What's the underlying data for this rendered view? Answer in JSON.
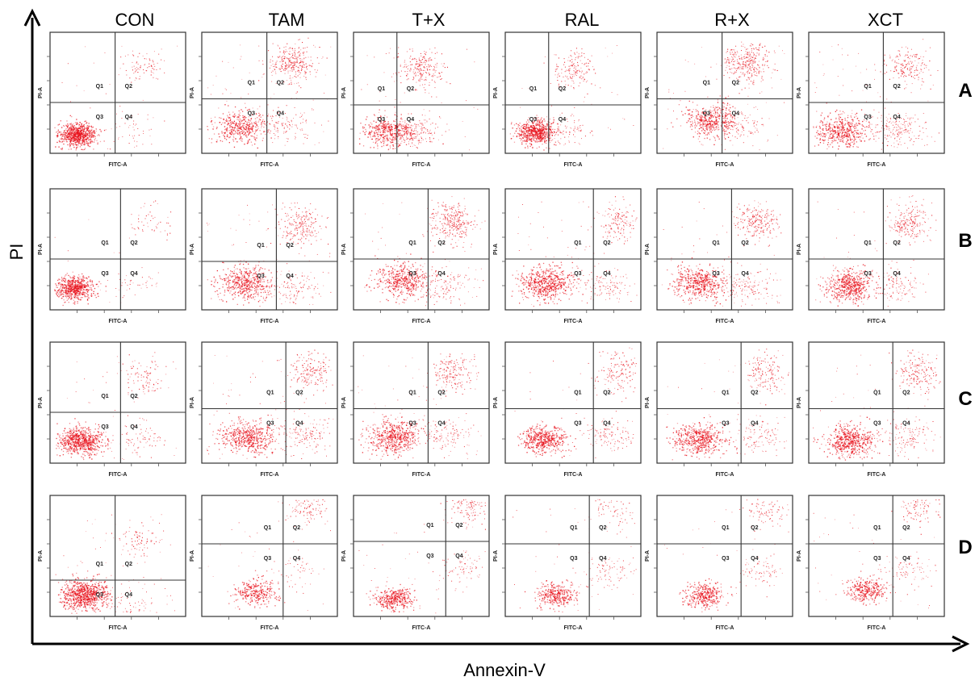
{
  "chart_data": {
    "type": "scatter",
    "description_axis": {
      "xlabel": "Annexin-V",
      "ylabel": "PI"
    },
    "columns": [
      "CON",
      "TAM",
      "T+X",
      "RAL",
      "R+X",
      "XCT"
    ],
    "rows": [
      "A",
      "B",
      "C",
      "D"
    ],
    "panel_xlabel": "FITC-A",
    "panel_ylabel": "PI-A",
    "quadrants": [
      "Q1",
      "Q2",
      "Q3",
      "Q4"
    ],
    "point_color": "#e8101a",
    "panels": [
      [
        {
          "center": [
            0.2,
            0.16
          ],
          "live": 0.82,
          "spread": 0.07,
          "q1": 0.03,
          "q2": 0.1,
          "q4": 0.05,
          "density": 1.0,
          "gate": [
            0.48,
            0.42
          ]
        },
        {
          "center": [
            0.28,
            0.22
          ],
          "live": 0.4,
          "spread": 0.1,
          "q1": 0.12,
          "q2": 0.35,
          "q4": 0.13,
          "density": 1.0,
          "gate": [
            0.48,
            0.45
          ]
        },
        {
          "center": [
            0.25,
            0.18
          ],
          "live": 0.45,
          "spread": 0.09,
          "q1": 0.05,
          "q2": 0.25,
          "q4": 0.25,
          "density": 1.0,
          "gate": [
            0.32,
            0.4
          ]
        },
        {
          "center": [
            0.22,
            0.18
          ],
          "live": 0.7,
          "spread": 0.07,
          "q1": 0.04,
          "q2": 0.16,
          "q4": 0.1,
          "density": 1.0,
          "gate": [
            0.32,
            0.4
          ]
        },
        {
          "center": [
            0.4,
            0.28
          ],
          "live": 0.45,
          "spread": 0.1,
          "q1": 0.08,
          "q2": 0.35,
          "q4": 0.12,
          "density": 1.0,
          "gate": [
            0.48,
            0.45
          ]
        },
        {
          "center": [
            0.25,
            0.18
          ],
          "live": 0.5,
          "spread": 0.1,
          "q1": 0.08,
          "q2": 0.22,
          "q4": 0.2,
          "density": 1.0,
          "gate": [
            0.55,
            0.42
          ]
        }
      ],
      [
        {
          "center": [
            0.18,
            0.18
          ],
          "live": 0.85,
          "spread": 0.07,
          "q1": 0.03,
          "q2": 0.07,
          "q4": 0.05,
          "density": 0.8,
          "gate": [
            0.52,
            0.42
          ]
        },
        {
          "center": [
            0.32,
            0.22
          ],
          "live": 0.55,
          "spread": 0.1,
          "q1": 0.08,
          "q2": 0.22,
          "q4": 0.15,
          "density": 1.0,
          "gate": [
            0.55,
            0.4
          ]
        },
        {
          "center": [
            0.35,
            0.25
          ],
          "live": 0.5,
          "spread": 0.1,
          "q1": 0.05,
          "q2": 0.32,
          "q4": 0.13,
          "density": 1.0,
          "gate": [
            0.55,
            0.42
          ]
        },
        {
          "center": [
            0.3,
            0.22
          ],
          "live": 0.65,
          "spread": 0.1,
          "q1": 0.07,
          "q2": 0.16,
          "q4": 0.12,
          "density": 1.0,
          "gate": [
            0.65,
            0.42
          ]
        },
        {
          "center": [
            0.32,
            0.22
          ],
          "live": 0.55,
          "spread": 0.1,
          "q1": 0.06,
          "q2": 0.25,
          "q4": 0.14,
          "density": 1.0,
          "gate": [
            0.55,
            0.42
          ]
        },
        {
          "center": [
            0.3,
            0.2
          ],
          "live": 0.6,
          "spread": 0.09,
          "q1": 0.05,
          "q2": 0.22,
          "q4": 0.13,
          "density": 1.0,
          "gate": [
            0.55,
            0.42
          ]
        }
      ],
      [
        {
          "center": [
            0.22,
            0.18
          ],
          "live": 0.78,
          "spread": 0.08,
          "q1": 0.04,
          "q2": 0.1,
          "q4": 0.08,
          "density": 1.0,
          "gate": [
            0.52,
            0.42
          ]
        },
        {
          "center": [
            0.32,
            0.22
          ],
          "live": 0.55,
          "spread": 0.1,
          "q1": 0.08,
          "q2": 0.22,
          "q4": 0.15,
          "density": 1.0,
          "gate": [
            0.62,
            0.45
          ]
        },
        {
          "center": [
            0.3,
            0.22
          ],
          "live": 0.6,
          "spread": 0.1,
          "q1": 0.06,
          "q2": 0.2,
          "q4": 0.14,
          "density": 1.0,
          "gate": [
            0.55,
            0.45
          ]
        },
        {
          "center": [
            0.28,
            0.2
          ],
          "live": 0.62,
          "spread": 0.08,
          "q1": 0.05,
          "q2": 0.18,
          "q4": 0.15,
          "density": 0.9,
          "gate": [
            0.65,
            0.45
          ]
        },
        {
          "center": [
            0.3,
            0.2
          ],
          "live": 0.6,
          "spread": 0.09,
          "q1": 0.05,
          "q2": 0.2,
          "q4": 0.15,
          "density": 0.9,
          "gate": [
            0.62,
            0.45
          ]
        },
        {
          "center": [
            0.3,
            0.18
          ],
          "live": 0.62,
          "spread": 0.09,
          "q1": 0.05,
          "q2": 0.18,
          "q4": 0.15,
          "density": 1.0,
          "gate": [
            0.62,
            0.45
          ]
        }
      ],
      [
        {
          "center": [
            0.25,
            0.18
          ],
          "live": 0.78,
          "spread": 0.09,
          "q1": 0.06,
          "q2": 0.08,
          "q4": 0.08,
          "density": 1.1,
          "gate": [
            0.48,
            0.3
          ]
        },
        {
          "center": [
            0.4,
            0.2
          ],
          "live": 0.6,
          "spread": 0.08,
          "q1": 0.07,
          "q2": 0.2,
          "q4": 0.13,
          "density": 0.55,
          "gate": [
            0.6,
            0.6
          ]
        },
        {
          "center": [
            0.3,
            0.15
          ],
          "live": 0.55,
          "spread": 0.07,
          "q1": 0.07,
          "q2": 0.25,
          "q4": 0.13,
          "density": 0.7,
          "gate": [
            0.68,
            0.62
          ]
        },
        {
          "center": [
            0.38,
            0.18
          ],
          "live": 0.65,
          "spread": 0.07,
          "q1": 0.06,
          "q2": 0.16,
          "q4": 0.13,
          "density": 0.6,
          "gate": [
            0.62,
            0.6
          ]
        },
        {
          "center": [
            0.35,
            0.18
          ],
          "live": 0.65,
          "spread": 0.07,
          "q1": 0.06,
          "q2": 0.16,
          "q4": 0.13,
          "density": 0.6,
          "gate": [
            0.62,
            0.6
          ]
        },
        {
          "center": [
            0.42,
            0.22
          ],
          "live": 0.62,
          "spread": 0.07,
          "q1": 0.06,
          "q2": 0.18,
          "q4": 0.14,
          "density": 0.6,
          "gate": [
            0.62,
            0.6
          ]
        }
      ]
    ]
  }
}
